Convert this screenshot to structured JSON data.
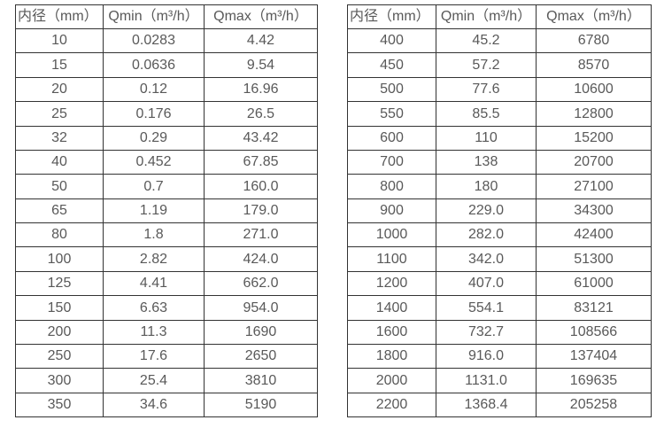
{
  "page": {
    "background_color": "#ffffff",
    "border_color": "#333333",
    "text_color": "#595959"
  },
  "tables": [
    {
      "name": "flow-spec-table-small-diameters",
      "headers": [
        "内径（mm）",
        "Qmin（m³/h）",
        "Qmax（m³/h）"
      ],
      "rows": [
        [
          "10",
          "0.0283",
          "4.42"
        ],
        [
          "15",
          "0.0636",
          "9.54"
        ],
        [
          "20",
          "0.12",
          "16.96"
        ],
        [
          "25",
          "0.176",
          "26.5"
        ],
        [
          "32",
          "0.29",
          "43.42"
        ],
        [
          "40",
          "0.452",
          "67.85"
        ],
        [
          "50",
          "0.7",
          "160.0"
        ],
        [
          "65",
          "1.19",
          "179.0"
        ],
        [
          "80",
          "1.8",
          "271.0"
        ],
        [
          "100",
          "2.82",
          "424.0"
        ],
        [
          "125",
          "4.41",
          "662.0"
        ],
        [
          "150",
          "6.63",
          "954.0"
        ],
        [
          "200",
          "11.3",
          "1690"
        ],
        [
          "250",
          "17.6",
          "2650"
        ],
        [
          "300",
          "25.4",
          "3810"
        ],
        [
          "350",
          "34.6",
          "5190"
        ]
      ]
    },
    {
      "name": "flow-spec-table-large-diameters",
      "headers": [
        "内径（mm）",
        "Qmin（m³/h）",
        "Qmax（m³/h）"
      ],
      "rows": [
        [
          "400",
          "45.2",
          "6780"
        ],
        [
          "450",
          "57.2",
          "8570"
        ],
        [
          "500",
          "77.6",
          "10600"
        ],
        [
          "550",
          "85.5",
          "12800"
        ],
        [
          "600",
          "110",
          "15200"
        ],
        [
          "700",
          "138",
          "20700"
        ],
        [
          "800",
          "180",
          "27100"
        ],
        [
          "900",
          "229.0",
          "34300"
        ],
        [
          "1000",
          "282.0",
          "42400"
        ],
        [
          "1100",
          "342.0",
          "51300"
        ],
        [
          "1200",
          "407.0",
          "61000"
        ],
        [
          "1400",
          "554.1",
          "83121"
        ],
        [
          "1600",
          "732.7",
          "108566"
        ],
        [
          "1800",
          "916.0",
          "137404"
        ],
        [
          "2000",
          "1131.0",
          "169635"
        ],
        [
          "2200",
          "1368.4",
          "205258"
        ]
      ]
    }
  ]
}
